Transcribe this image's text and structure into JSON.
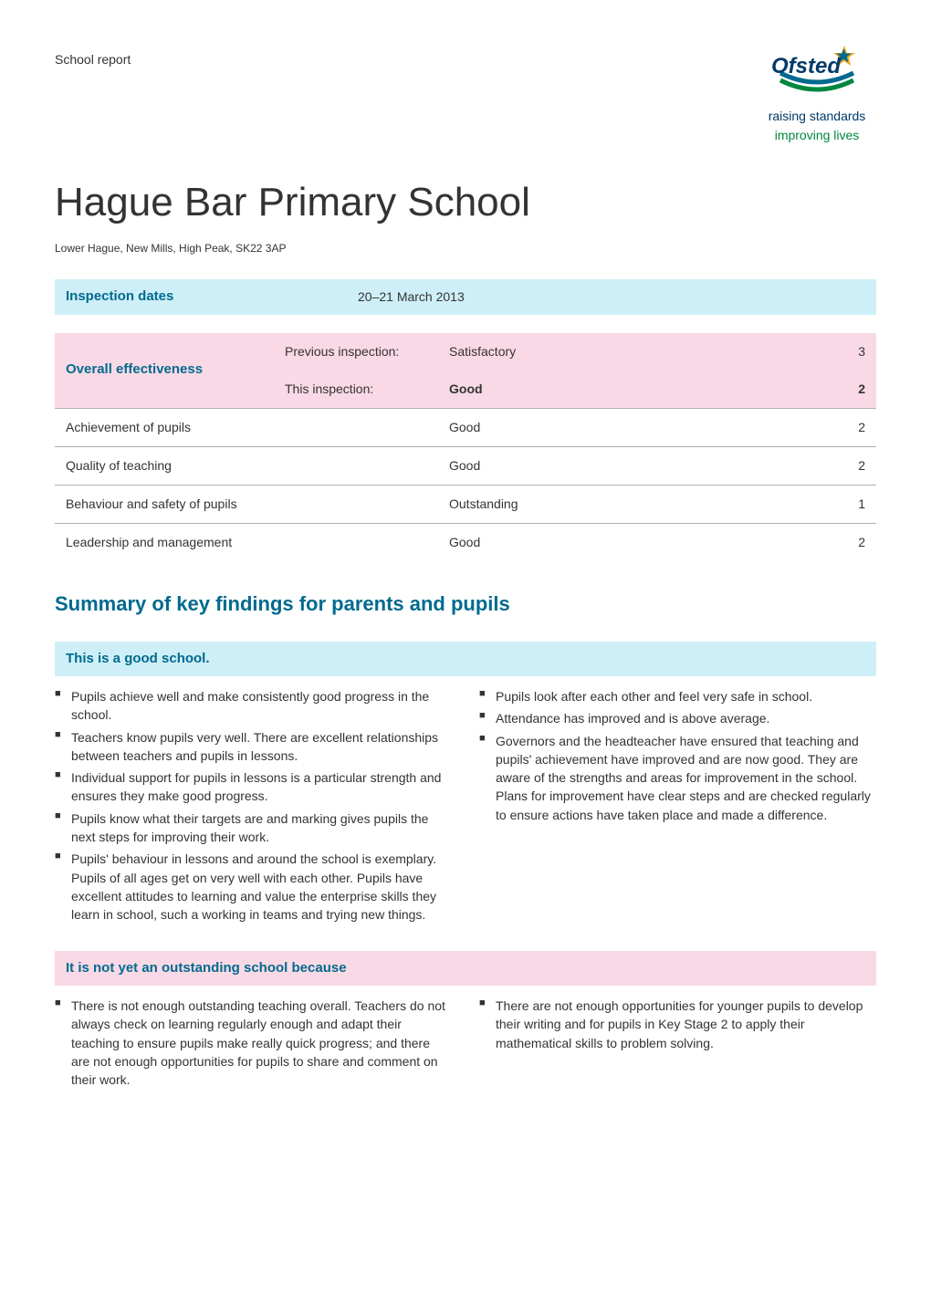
{
  "header": {
    "left_text": "School report",
    "logo": {
      "alt": "Ofsted",
      "line1": "raising standards",
      "line2": "improving lives",
      "colors": {
        "star": "#f6a81c",
        "curve1": "#006a8e",
        "curve2": "#00873e",
        "text_word": "#003a69"
      }
    }
  },
  "school": {
    "name": "Hague Bar Primary School",
    "address": "Lower Hague, New Mills, High Peak, SK22 3AP"
  },
  "inspection_dates": {
    "label": "Inspection dates",
    "value": "20–21 March 2013"
  },
  "effectiveness_table": {
    "rows": [
      {
        "col1": "Overall effectiveness",
        "col2": "Previous inspection:",
        "col3": "Satisfactory",
        "col4": "3",
        "shaded": true,
        "col1_rowspan": true
      },
      {
        "col1": "",
        "col2": "This inspection:",
        "col3": "Good",
        "col4": "2",
        "shaded": true,
        "bold34": true
      },
      {
        "col1": "Achievement of pupils",
        "col2": "",
        "col3": "Good",
        "col4": "2",
        "shaded": false
      },
      {
        "col1": "Quality of teaching",
        "col2": "",
        "col3": "Good",
        "col4": "2",
        "shaded": false
      },
      {
        "col1": "Behaviour and safety of pupils",
        "col2": "",
        "col3": "Outstanding",
        "col4": "1",
        "shaded": false
      },
      {
        "col1": "Leadership and management",
        "col2": "",
        "col3": "Good",
        "col4": "2",
        "shaded": false
      }
    ]
  },
  "summary_heading": "Summary of key findings for parents and pupils",
  "good_school": {
    "heading": "This is a good school.",
    "left_bullets": [
      "Pupils achieve well and make consistently good progress in the school.",
      "Teachers know pupils very well. There are excellent relationships between teachers and pupils in lessons.",
      "Individual support for pupils in lessons is a particular strength and ensures they make good progress.",
      "Pupils know what their targets are and marking gives pupils the next steps for improving their work.",
      "Pupils' behaviour in lessons and around the school is exemplary. Pupils of all ages get on very well with each other. Pupils have excellent attitudes to learning and value the enterprise skills they learn in school, such a working in teams and trying new things."
    ],
    "right_bullets": [
      "Pupils look after each other and feel very safe in school.",
      "Attendance has improved and is above average.",
      "Governors and the headteacher have ensured that teaching and pupils' achievement have improved and are now good. They are aware of the strengths and areas for improvement in the school. Plans for improvement have clear steps and are checked regularly to ensure actions have taken place and made a difference."
    ]
  },
  "not_yet": {
    "heading": "It is not yet an outstanding school because",
    "left_bullets": [
      "There is not enough outstanding teaching overall. Teachers do not always check on learning regularly enough and adapt their teaching to ensure pupils make really quick progress; and there are not enough opportunities for pupils to share and comment on their work."
    ],
    "right_bullets": [
      "There are not enough opportunities for younger pupils to develop their writing and for pupils in Key Stage 2 to apply their mathematical skills to problem solving."
    ]
  }
}
